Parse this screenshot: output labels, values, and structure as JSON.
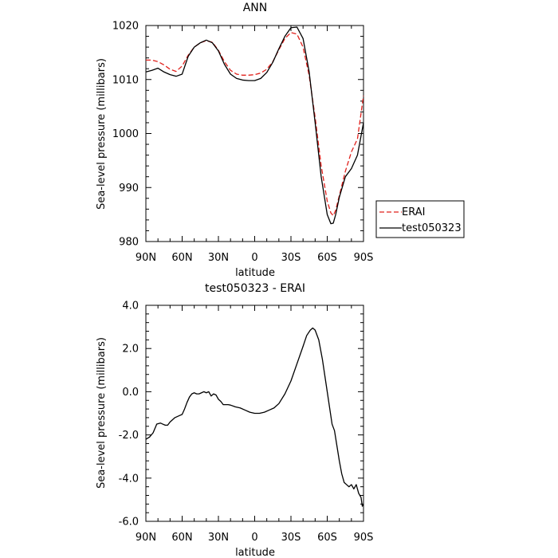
{
  "chart_data": [
    {
      "type": "line",
      "title": "ANN",
      "xlabel": "",
      "ylabel": "Sea-level pressure (millibars)",
      "xlim": [
        90,
        -90
      ],
      "ylim": [
        980,
        1020
      ],
      "x_ticks": [
        90,
        60,
        30,
        0,
        -30,
        -60,
        -90
      ],
      "x_tick_labels": [
        "90N",
        "60N",
        "30N",
        "0",
        "30S",
        "60S",
        "90S"
      ],
      "y_ticks": [
        980,
        990,
        1000,
        1010,
        1020
      ],
      "y_tick_labels": [
        "980",
        "990",
        "1000",
        "1010",
        "1020"
      ],
      "legend": "right",
      "series": [
        {
          "name": "ERAI",
          "color": "#e0201b",
          "dash": "dashed",
          "x": [
            90,
            85,
            80,
            75,
            70,
            65,
            60,
            55,
            50,
            45,
            40,
            35,
            30,
            25,
            20,
            15,
            10,
            5,
            0,
            -5,
            -10,
            -15,
            -20,
            -25,
            -30,
            -35,
            -40,
            -45,
            -50,
            -55,
            -60,
            -63,
            -65,
            -67,
            -70,
            -75,
            -80,
            -85,
            -90
          ],
          "y": [
            1013.6,
            1013.6,
            1013.3,
            1012.7,
            1011.9,
            1011.5,
            1012.5,
            1014.5,
            1016.0,
            1016.8,
            1017.2,
            1016.9,
            1015.4,
            1013.3,
            1011.7,
            1011.0,
            1010.8,
            1010.8,
            1010.9,
            1011.2,
            1011.9,
            1013.3,
            1015.5,
            1017.6,
            1018.7,
            1018.4,
            1016.0,
            1010.8,
            1003.0,
            994.0,
            987.5,
            985.3,
            984.8,
            985.8,
            988.5,
            993.0,
            996.6,
            999.0,
            1007.0
          ]
        },
        {
          "name": "test050323",
          "color": "#000000",
          "dash": "solid",
          "x": [
            90,
            85,
            80,
            75,
            70,
            65,
            60,
            55,
            50,
            45,
            40,
            35,
            30,
            25,
            20,
            15,
            10,
            5,
            0,
            -5,
            -10,
            -15,
            -20,
            -25,
            -30,
            -35,
            -40,
            -45,
            -50,
            -55,
            -60,
            -63,
            -65,
            -67,
            -70,
            -75,
            -80,
            -85,
            -90
          ],
          "y": [
            1011.4,
            1011.7,
            1012.1,
            1011.4,
            1010.9,
            1010.6,
            1011.0,
            1014.3,
            1016.0,
            1016.8,
            1017.3,
            1016.8,
            1015.3,
            1012.8,
            1011.0,
            1010.2,
            1009.9,
            1009.8,
            1009.8,
            1010.2,
            1011.3,
            1013.2,
            1015.7,
            1018.0,
            1019.6,
            1019.7,
            1017.6,
            1011.5,
            1002.0,
            992.0,
            985.0,
            983.3,
            983.4,
            985.0,
            988.2,
            992.0,
            993.5,
            996.0,
            1002.0
          ]
        }
      ]
    },
    {
      "type": "line",
      "title": "test050323 - ERAI",
      "xlabel": "latitude",
      "ylabel": "Sea-level pressure (millibars)",
      "xlim": [
        90,
        -90
      ],
      "ylim": [
        -6.0,
        4.0
      ],
      "x_ticks": [
        90,
        60,
        30,
        0,
        -30,
        -60,
        -90
      ],
      "x_tick_labels": [
        "90N",
        "60N",
        "30N",
        "0",
        "30S",
        "60S",
        "90S"
      ],
      "y_ticks": [
        -6,
        -4,
        -2,
        0,
        2,
        4
      ],
      "y_tick_labels": [
        "-6.0",
        "-4.0",
        "-2.0",
        "0.0",
        "2.0",
        "4.0"
      ],
      "series": [
        {
          "color": "#000000",
          "dash": "solid",
          "x": [
            90,
            87,
            84,
            81,
            78,
            76,
            74,
            72,
            70,
            68,
            66,
            64,
            62,
            60,
            58,
            56,
            54,
            52,
            50,
            48,
            46,
            44,
            42,
            40,
            38,
            36,
            34,
            32,
            30,
            28,
            26,
            24,
            22,
            20,
            16,
            12,
            8,
            4,
            0,
            -4,
            -8,
            -12,
            -16,
            -20,
            -25,
            -30,
            -35,
            -40,
            -43,
            -46,
            -48,
            -50,
            -53,
            -56,
            -60,
            -64,
            -66,
            -68,
            -70,
            -72,
            -74,
            -76,
            -78,
            -80,
            -82,
            -84,
            -86,
            -88,
            -89,
            -90
          ],
          "y": [
            -2.2,
            -2.1,
            -1.9,
            -1.5,
            -1.45,
            -1.5,
            -1.55,
            -1.55,
            -1.4,
            -1.3,
            -1.2,
            -1.15,
            -1.1,
            -1.05,
            -0.8,
            -0.5,
            -0.25,
            -0.1,
            -0.05,
            -0.1,
            -0.1,
            -0.05,
            0.0,
            -0.05,
            0.0,
            -0.2,
            -0.1,
            -0.15,
            -0.35,
            -0.45,
            -0.6,
            -0.6,
            -0.6,
            -0.62,
            -0.7,
            -0.75,
            -0.85,
            -0.95,
            -1.0,
            -1.0,
            -0.95,
            -0.85,
            -0.75,
            -0.55,
            -0.1,
            0.5,
            1.3,
            2.1,
            2.6,
            2.85,
            2.95,
            2.85,
            2.4,
            1.5,
            0.0,
            -1.5,
            -1.8,
            -2.5,
            -3.2,
            -3.8,
            -4.2,
            -4.3,
            -4.4,
            -4.3,
            -4.5,
            -4.3,
            -4.7,
            -4.9,
            -5.3,
            -5.2
          ]
        }
      ]
    }
  ]
}
